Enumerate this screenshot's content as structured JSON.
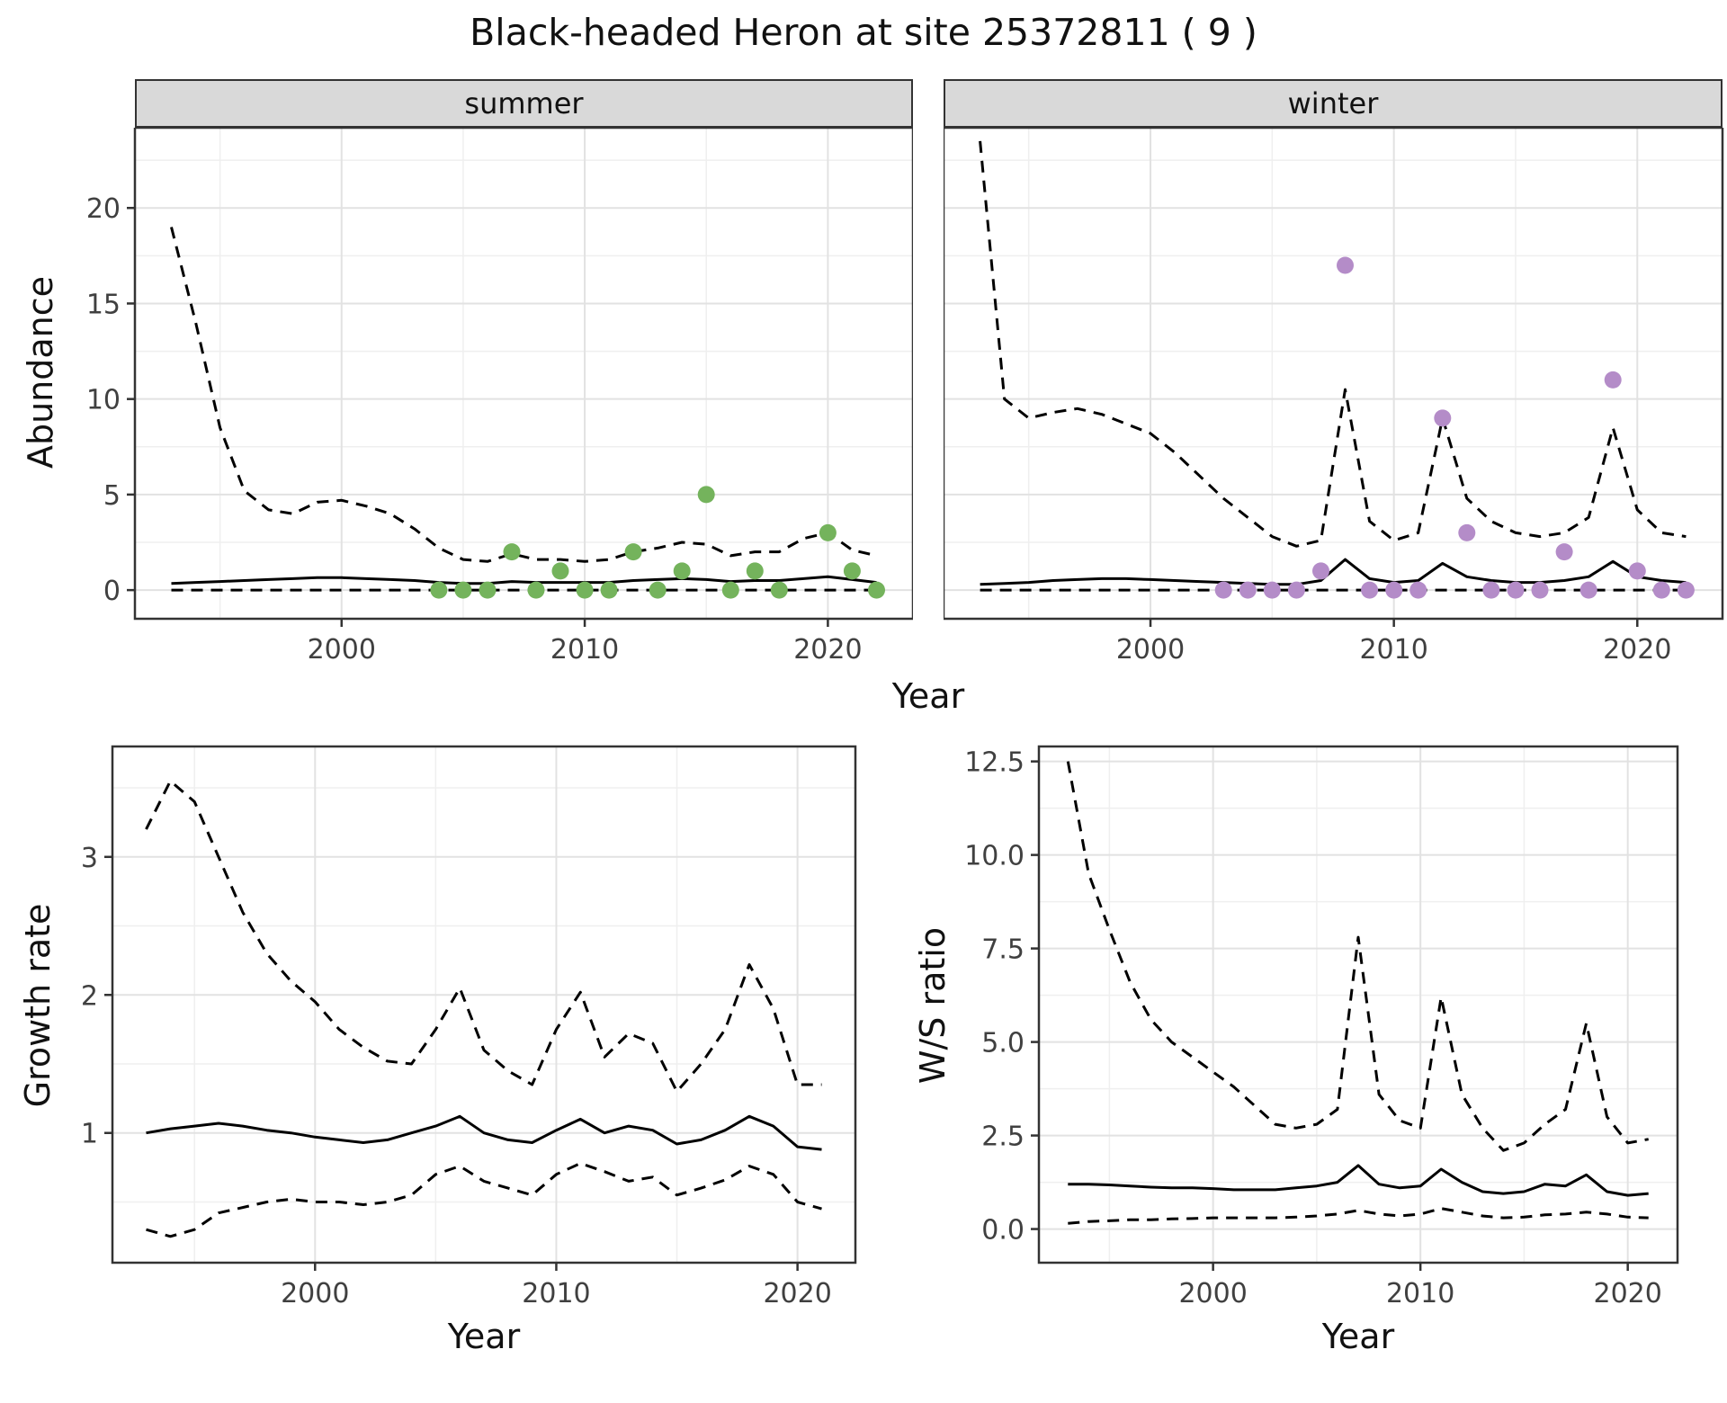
{
  "title": "Black-headed Heron at site 25372811 ( 9 )",
  "colors": {
    "line": "#000000",
    "summer_points": "#74b35c",
    "winter_points": "#b48cc8",
    "strip_bg": "#d9d9d9",
    "panel_border": "#333333",
    "grid_major": "#e2e2e2",
    "grid_minor": "#efefef"
  },
  "chart_data": [
    {
      "id": "abundance-summer",
      "type": "line",
      "facet_label": "summer",
      "ylabel": "Abundance",
      "xlabel": "Year",
      "x": [
        1993,
        1994,
        1995,
        1996,
        1997,
        1998,
        1999,
        2000,
        2001,
        2002,
        2003,
        2004,
        2005,
        2006,
        2007,
        2008,
        2009,
        2010,
        2011,
        2012,
        2013,
        2014,
        2015,
        2016,
        2017,
        2018,
        2019,
        2020,
        2021,
        2022
      ],
      "xlim": [
        1991.5,
        2023.5
      ],
      "ylim": [
        -1.5,
        24.2
      ],
      "xticks": [
        2000,
        2010,
        2020
      ],
      "xtick_labels": [
        "2000",
        "2010",
        "2020"
      ],
      "yticks": [
        0,
        5,
        10,
        15,
        20
      ],
      "ytick_labels": [
        "0",
        "5",
        "10",
        "15",
        "20"
      ],
      "xminor": [
        1995,
        2005,
        2015
      ],
      "yminor": [
        2.5,
        7.5,
        12.5,
        17.5,
        22.5
      ],
      "series": [
        {
          "name": "upper_ci",
          "style": "dashed",
          "color": "#000000",
          "values": [
            19,
            14,
            8.5,
            5.2,
            4.2,
            4.0,
            4.6,
            4.7,
            4.4,
            4.0,
            3.2,
            2.2,
            1.6,
            1.5,
            1.9,
            1.6,
            1.6,
            1.5,
            1.6,
            2.0,
            2.2,
            2.5,
            2.4,
            1.8,
            2.0,
            2.0,
            2.7,
            3.0,
            2.1,
            1.8
          ]
        },
        {
          "name": "mean",
          "style": "solid",
          "color": "#000000",
          "values": [
            0.35,
            0.4,
            0.45,
            0.5,
            0.55,
            0.6,
            0.65,
            0.65,
            0.6,
            0.55,
            0.5,
            0.4,
            0.35,
            0.35,
            0.45,
            0.4,
            0.4,
            0.4,
            0.4,
            0.5,
            0.55,
            0.6,
            0.55,
            0.45,
            0.5,
            0.5,
            0.6,
            0.7,
            0.55,
            0.4
          ]
        },
        {
          "name": "lower_ci",
          "style": "dashed",
          "color": "#000000",
          "values": [
            0,
            0,
            0,
            0,
            0,
            0,
            0,
            0,
            0,
            0,
            0,
            0,
            0,
            0,
            0,
            0,
            0,
            0,
            0,
            0,
            0,
            0,
            0,
            0,
            0,
            0,
            0,
            0,
            0,
            0
          ]
        }
      ],
      "points": {
        "name": "observed-counts-summer",
        "color": "#74b35c",
        "x": [
          2004,
          2005,
          2006,
          2007,
          2008,
          2009,
          2010,
          2011,
          2012,
          2013,
          2014,
          2015,
          2016,
          2017,
          2018,
          2020,
          2021,
          2022
        ],
        "y": [
          0,
          0,
          0,
          2,
          0,
          1,
          0,
          0,
          2,
          0,
          1,
          5,
          0,
          1,
          0,
          3,
          1,
          0
        ]
      }
    },
    {
      "id": "abundance-winter",
      "type": "line",
      "facet_label": "winter",
      "ylabel": "Abundance",
      "xlabel": "Year",
      "x": [
        1993,
        1994,
        1995,
        1996,
        1997,
        1998,
        1999,
        2000,
        2001,
        2002,
        2003,
        2004,
        2005,
        2006,
        2007,
        2008,
        2009,
        2010,
        2011,
        2012,
        2013,
        2014,
        2015,
        2016,
        2017,
        2018,
        2019,
        2020,
        2021,
        2022
      ],
      "xlim": [
        1991.5,
        2023.5
      ],
      "ylim": [
        -1.5,
        24.2
      ],
      "xticks": [
        2000,
        2010,
        2020
      ],
      "xtick_labels": [
        "2000",
        "2010",
        "2020"
      ],
      "yticks": [
        0,
        5,
        10,
        15,
        20
      ],
      "ytick_labels": [
        "0",
        "5",
        "10",
        "15",
        "20"
      ],
      "xminor": [
        1995,
        2005,
        2015
      ],
      "yminor": [
        2.5,
        7.5,
        12.5,
        17.5,
        22.5
      ],
      "series": [
        {
          "name": "upper_ci",
          "style": "dashed",
          "color": "#000000",
          "values": [
            23.5,
            10,
            9,
            9.3,
            9.5,
            9.2,
            8.7,
            8.2,
            7.2,
            6.0,
            4.8,
            3.8,
            2.8,
            2.3,
            2.6,
            10.5,
            3.6,
            2.6,
            3.0,
            9.0,
            4.8,
            3.6,
            3.0,
            2.8,
            3.0,
            3.8,
            8.5,
            4.2,
            3.0,
            2.8
          ]
        },
        {
          "name": "mean",
          "style": "solid",
          "color": "#000000",
          "values": [
            0.3,
            0.35,
            0.4,
            0.5,
            0.55,
            0.6,
            0.6,
            0.55,
            0.5,
            0.45,
            0.4,
            0.35,
            0.3,
            0.3,
            0.5,
            1.6,
            0.6,
            0.4,
            0.5,
            1.4,
            0.7,
            0.5,
            0.4,
            0.4,
            0.5,
            0.7,
            1.5,
            0.7,
            0.5,
            0.4
          ]
        },
        {
          "name": "lower_ci",
          "style": "dashed",
          "color": "#000000",
          "values": [
            0,
            0,
            0,
            0,
            0,
            0,
            0,
            0,
            0,
            0,
            0,
            0,
            0,
            0,
            0,
            0,
            0,
            0,
            0,
            0,
            0,
            0,
            0,
            0,
            0,
            0,
            0,
            0,
            0,
            0
          ]
        }
      ],
      "points": {
        "name": "observed-counts-winter",
        "color": "#b48cc8",
        "x": [
          2003,
          2004,
          2005,
          2006,
          2007,
          2008,
          2009,
          2010,
          2011,
          2012,
          2013,
          2014,
          2015,
          2016,
          2017,
          2018,
          2019,
          2020,
          2021,
          2022
        ],
        "y": [
          0,
          0,
          0,
          0,
          1,
          17,
          0,
          0,
          0,
          9,
          3,
          0,
          0,
          0,
          2,
          0,
          11,
          1,
          0,
          0
        ]
      }
    },
    {
      "id": "growth-rate",
      "type": "line",
      "ylabel": "Growth rate",
      "xlabel": "Year",
      "x": [
        1993,
        1994,
        1995,
        1996,
        1997,
        1998,
        1999,
        2000,
        2001,
        2002,
        2003,
        2004,
        2005,
        2006,
        2007,
        2008,
        2009,
        2010,
        2011,
        2012,
        2013,
        2014,
        2015,
        2016,
        2017,
        2018,
        2019,
        2020,
        2021
      ],
      "xlim": [
        1991.6,
        2022.4
      ],
      "ylim": [
        0.06,
        3.8
      ],
      "xticks": [
        2000,
        2010,
        2020
      ],
      "xtick_labels": [
        "2000",
        "2010",
        "2020"
      ],
      "yticks": [
        1,
        2,
        3
      ],
      "ytick_labels": [
        "1",
        "2",
        "3"
      ],
      "xminor": [
        1995,
        2005,
        2015
      ],
      "yminor": [
        0.5,
        1.5,
        2.5,
        3.5
      ],
      "series": [
        {
          "name": "upper_ci",
          "style": "dashed",
          "color": "#000000",
          "values": [
            3.2,
            3.55,
            3.4,
            3.0,
            2.6,
            2.3,
            2.1,
            1.95,
            1.75,
            1.62,
            1.52,
            1.5,
            1.75,
            2.05,
            1.6,
            1.45,
            1.35,
            1.75,
            2.02,
            1.55,
            1.72,
            1.65,
            1.3,
            1.5,
            1.75,
            2.22,
            1.9,
            1.35,
            1.35
          ]
        },
        {
          "name": "mean",
          "style": "solid",
          "color": "#000000",
          "values": [
            1.0,
            1.03,
            1.05,
            1.07,
            1.05,
            1.02,
            1.0,
            0.97,
            0.95,
            0.93,
            0.95,
            1.0,
            1.05,
            1.12,
            1.0,
            0.95,
            0.93,
            1.02,
            1.1,
            1.0,
            1.05,
            1.02,
            0.92,
            0.95,
            1.02,
            1.12,
            1.05,
            0.9,
            0.88
          ]
        },
        {
          "name": "lower_ci",
          "style": "dashed",
          "color": "#000000",
          "values": [
            0.3,
            0.25,
            0.3,
            0.42,
            0.46,
            0.5,
            0.52,
            0.5,
            0.5,
            0.48,
            0.5,
            0.55,
            0.7,
            0.76,
            0.65,
            0.6,
            0.55,
            0.7,
            0.78,
            0.72,
            0.65,
            0.68,
            0.55,
            0.6,
            0.66,
            0.76,
            0.7,
            0.5,
            0.45
          ]
        }
      ]
    },
    {
      "id": "ws-ratio",
      "type": "line",
      "ylabel": "W/S ratio",
      "xlabel": "Year",
      "x": [
        1993,
        1994,
        1995,
        1996,
        1997,
        1998,
        1999,
        2000,
        2001,
        2002,
        2003,
        2004,
        2005,
        2006,
        2007,
        2008,
        2009,
        2010,
        2011,
        2012,
        2013,
        2014,
        2015,
        2016,
        2017,
        2018,
        2019,
        2020,
        2021
      ],
      "xlim": [
        1991.6,
        2022.4
      ],
      "ylim": [
        -0.9,
        12.9
      ],
      "xticks": [
        2000,
        2010,
        2020
      ],
      "xtick_labels": [
        "2000",
        "2010",
        "2020"
      ],
      "yticks": [
        0,
        2.5,
        5,
        7.5,
        10,
        12.5
      ],
      "ytick_labels": [
        "0.0",
        "2.5",
        "5.0",
        "7.5",
        "10.0",
        "12.5"
      ],
      "xminor": [
        1995,
        2005,
        2015
      ],
      "yminor": [
        1.25,
        3.75,
        6.25,
        8.75,
        11.25
      ],
      "series": [
        {
          "name": "upper_ci",
          "style": "dashed",
          "color": "#000000",
          "values": [
            12.5,
            9.5,
            8.0,
            6.6,
            5.6,
            5.0,
            4.6,
            4.2,
            3.8,
            3.3,
            2.8,
            2.7,
            2.8,
            3.2,
            7.8,
            3.6,
            2.9,
            2.7,
            6.2,
            3.6,
            2.7,
            2.1,
            2.3,
            2.8,
            3.2,
            5.5,
            3.0,
            2.3,
            2.4
          ]
        },
        {
          "name": "mean",
          "style": "solid",
          "color": "#000000",
          "values": [
            1.2,
            1.2,
            1.18,
            1.15,
            1.12,
            1.1,
            1.1,
            1.08,
            1.05,
            1.05,
            1.05,
            1.1,
            1.15,
            1.25,
            1.7,
            1.2,
            1.1,
            1.15,
            1.6,
            1.25,
            1.0,
            0.95,
            1.0,
            1.2,
            1.15,
            1.45,
            1.0,
            0.9,
            0.95
          ]
        },
        {
          "name": "lower_ci",
          "style": "dashed",
          "color": "#000000",
          "values": [
            0.15,
            0.2,
            0.22,
            0.25,
            0.25,
            0.27,
            0.28,
            0.3,
            0.3,
            0.3,
            0.3,
            0.32,
            0.35,
            0.4,
            0.5,
            0.4,
            0.35,
            0.4,
            0.55,
            0.45,
            0.35,
            0.3,
            0.32,
            0.38,
            0.4,
            0.45,
            0.4,
            0.32,
            0.3
          ]
        }
      ]
    }
  ]
}
